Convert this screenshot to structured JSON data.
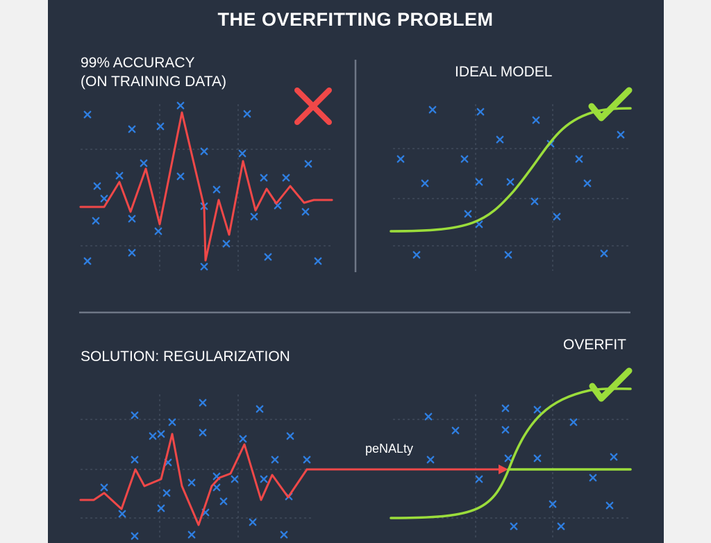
{
  "title": "THE OVERFITTING PROBLEM",
  "top_left": {
    "label_line1": "99% ACCURACY",
    "label_line2": "(ON TRAINING DATA)",
    "status_icon": "cross-icon",
    "status_color": "#f04848"
  },
  "top_right": {
    "label": "IDEAL MODEL",
    "status_icon": "check-icon",
    "status_color": "#9bdd3b"
  },
  "bottom": {
    "label_left": "SOLUTION: REGULARIZATION",
    "label_right": "OVERFIT",
    "arrow_label": "peNALty",
    "status_icon": "check-icon"
  },
  "colors": {
    "background": "#283140",
    "data_points": "#2f7ee0",
    "overfit_curve": "#f04848",
    "ideal_curve": "#9bdd3b"
  }
}
